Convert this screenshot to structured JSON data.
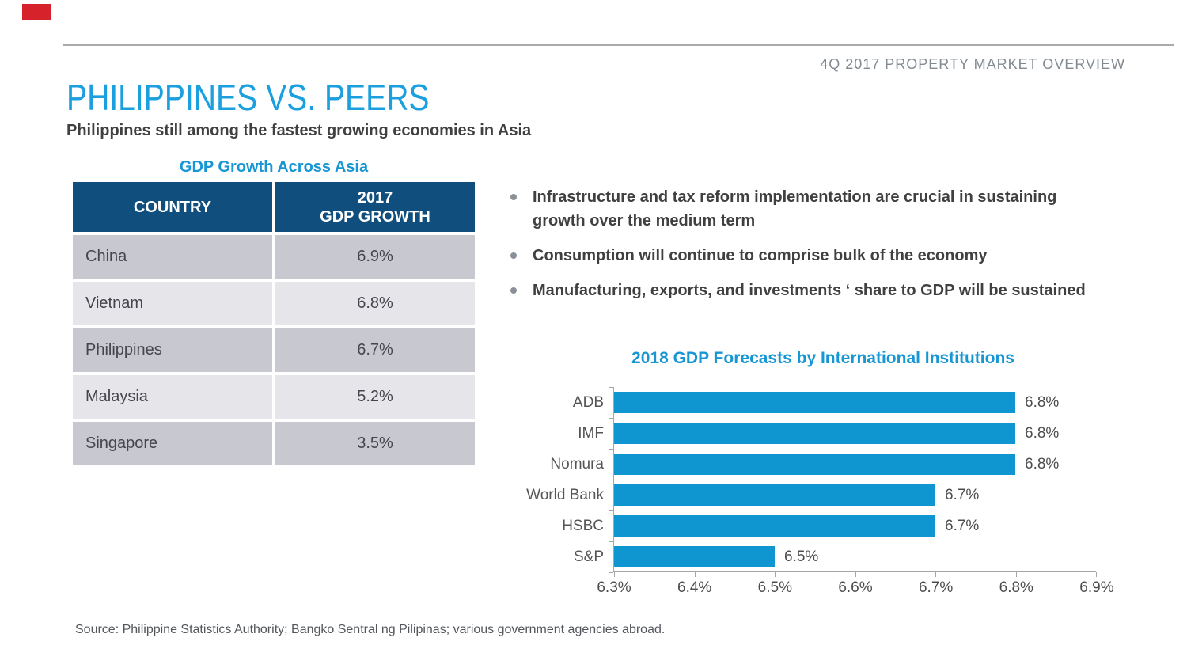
{
  "page": {
    "header_right": "4Q 2017 PROPERTY MARKET OVERVIEW",
    "title": "PHILIPPINES VS. PEERS",
    "subtitle": "Philippines still among the fastest growing economies in Asia",
    "source": "Source: Philippine Statistics Authority; Bangko Sentral ng Pilipinas; various government agencies abroad."
  },
  "table": {
    "title": "GDP Growth Across Asia",
    "headers": {
      "country": "COUNTRY",
      "growth_line1": "2017",
      "growth_line2": "GDP GROWTH"
    },
    "rows": [
      {
        "country": "China",
        "growth": "6.9%"
      },
      {
        "country": "Vietnam",
        "growth": "6.8%"
      },
      {
        "country": "Philippines",
        "growth": "6.7%"
      },
      {
        "country": "Malaysia",
        "growth": "5.2%"
      },
      {
        "country": "Singapore",
        "growth": "3.5%"
      }
    ]
  },
  "bullets": {
    "items": [
      {
        "line1": "Infrastructure and tax reform implementation are crucial in sustaining",
        "line2": "growth over the medium term"
      },
      {
        "line1": "Consumption will continue to comprise bulk of the economy",
        "line2": ""
      },
      {
        "line1": "Manufacturing, exports, and investments ‘ share to GDP will be sustained",
        "line2": ""
      }
    ]
  },
  "chart_data": {
    "type": "bar",
    "orientation": "horizontal",
    "title": "2018 GDP Forecasts by International Institutions",
    "categories": [
      "ADB",
      "IMF",
      "Nomura",
      "World Bank",
      "HSBC",
      "S&P"
    ],
    "values": [
      6.8,
      6.8,
      6.8,
      6.7,
      6.7,
      6.5
    ],
    "value_labels": [
      "6.8%",
      "6.8%",
      "6.8%",
      "6.7%",
      "6.7%",
      "6.5%"
    ],
    "x_ticks": [
      "6.3%",
      "6.4%",
      "6.5%",
      "6.6%",
      "6.7%",
      "6.8%",
      "6.9%"
    ],
    "xlim": [
      6.3,
      6.9
    ],
    "unit": "%",
    "grid": false,
    "legend": false,
    "bar_color": "#0f95d0"
  },
  "colors": {
    "accent_red": "#d6222a",
    "title_blue": "#1b9fdf",
    "heading_blue": "#1796d4",
    "bar_blue": "#0f95d0",
    "table_header_navy": "#104e7e",
    "row_dark_gray": "#c8c9d0",
    "row_light_gray": "#e6e6ea",
    "text_dark": "#404040",
    "axis_gray": "#a6a6a6"
  }
}
